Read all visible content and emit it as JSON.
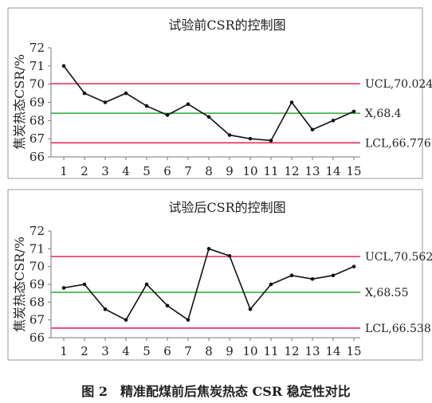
{
  "chart_data": [
    {
      "type": "line",
      "title": "试验前CSR的控制图",
      "ylabel": "焦炭热态CSR/%",
      "xlabel": "",
      "x": [
        1,
        2,
        3,
        4,
        5,
        6,
        7,
        8,
        9,
        10,
        11,
        12,
        13,
        14,
        15
      ],
      "x_tick_labels": [
        "1",
        "2",
        "3",
        "4",
        "5",
        "6",
        "7",
        "8",
        "9",
        "10",
        "11",
        "12",
        "13",
        "14",
        "15"
      ],
      "ylim": [
        66,
        72
      ],
      "y_ticks": [
        66,
        67,
        68,
        69,
        70,
        71,
        72
      ],
      "y_tick_labels": [
        "66",
        "67",
        "68",
        "69",
        "70",
        "71",
        "72"
      ],
      "series": [
        {
          "values": [
            71.0,
            69.5,
            69.0,
            69.5,
            68.8,
            68.3,
            68.9,
            68.2,
            67.2,
            67.0,
            66.9,
            69.0,
            67.5,
            68.0,
            68.5
          ]
        }
      ],
      "reference_lines": [
        {
          "label": "UCL,70.024",
          "value": 70.024,
          "color": "#e8285a"
        },
        {
          "label": "X,68.4",
          "value": 68.4,
          "color": "#3cb043"
        },
        {
          "label": "LCL,66.776",
          "value": 66.776,
          "color": "#e8285a"
        }
      ],
      "line_color": "#111111",
      "grid": false
    },
    {
      "type": "line",
      "title": "试验后CSR的控制图",
      "ylabel": "焦炭热态CSR/%",
      "xlabel": "",
      "x": [
        1,
        2,
        3,
        4,
        5,
        6,
        7,
        8,
        9,
        10,
        11,
        12,
        13,
        14,
        15
      ],
      "x_tick_labels": [
        "1",
        "2",
        "3",
        "4",
        "5",
        "6",
        "7",
        "8",
        "9",
        "10",
        "11",
        "12",
        "13",
        "14",
        "15"
      ],
      "ylim": [
        66,
        72
      ],
      "y_ticks": [
        66,
        67,
        68,
        69,
        70,
        71,
        72
      ],
      "y_tick_labels": [
        "66",
        "67",
        "68",
        "69",
        "70",
        "71",
        "72"
      ],
      "series": [
        {
          "values": [
            68.8,
            69.0,
            67.6,
            67.0,
            69.0,
            67.8,
            67.0,
            71.0,
            70.6,
            67.6,
            69.0,
            69.5,
            69.3,
            69.5,
            70.0
          ]
        }
      ],
      "reference_lines": [
        {
          "label": "UCL,70.562",
          "value": 70.562,
          "color": "#e8285a"
        },
        {
          "label": "X,68.55",
          "value": 68.55,
          "color": "#3cb043"
        },
        {
          "label": "LCL,66.538",
          "value": 66.538,
          "color": "#e8285a"
        }
      ],
      "line_color": "#111111",
      "grid": false
    }
  ],
  "caption": "图 2　精准配煤前后焦炭热态 CSR 稳定性对比"
}
